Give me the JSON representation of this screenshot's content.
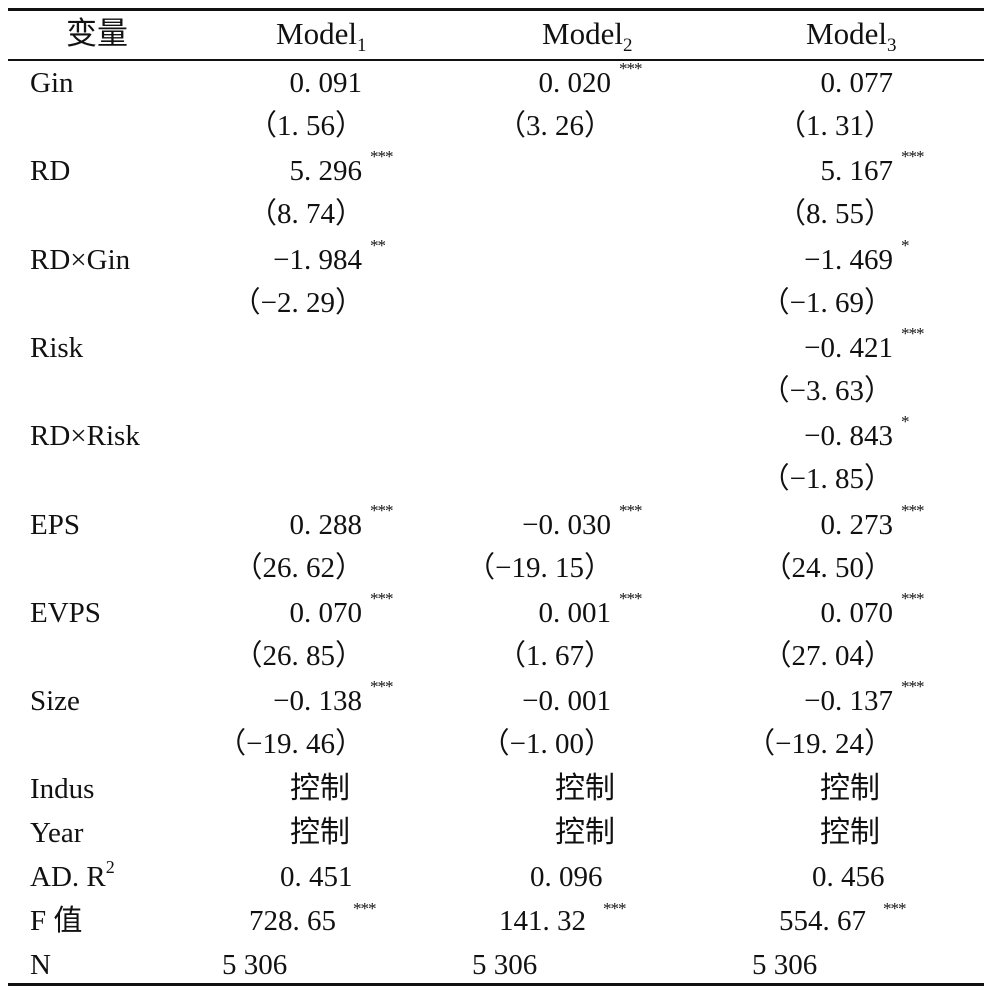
{
  "header": {
    "variable": "变量",
    "models": [
      {
        "name": "Model",
        "sub": "1"
      },
      {
        "name": "Model",
        "sub": "2"
      },
      {
        "name": "Model",
        "sub": "3"
      }
    ]
  },
  "rows": [
    {
      "label": "Gin",
      "cells": [
        {
          "coef": "0. 091",
          "stars": "",
          "t": "（1. 56）"
        },
        {
          "coef": "0. 020",
          "stars": "***",
          "t": "（3. 26）"
        },
        {
          "coef": "0. 077",
          "stars": "",
          "t": "（1. 31）"
        }
      ]
    },
    {
      "label": "RD",
      "cells": [
        {
          "coef": "5. 296",
          "stars": "***",
          "t": "（8. 74）"
        },
        {
          "coef": "",
          "stars": "",
          "t": ""
        },
        {
          "coef": "5. 167",
          "stars": "***",
          "t": "（8. 55）"
        }
      ]
    },
    {
      "label": "RD×Gin",
      "cells": [
        {
          "coef": "−1. 984",
          "stars": "**",
          "t": "（−2. 29）"
        },
        {
          "coef": "",
          "stars": "",
          "t": ""
        },
        {
          "coef": "−1. 469",
          "stars": "*",
          "t": "（−1. 69）"
        }
      ]
    },
    {
      "label": "Risk",
      "cells": [
        {
          "coef": "",
          "stars": "",
          "t": ""
        },
        {
          "coef": "",
          "stars": "",
          "t": ""
        },
        {
          "coef": "−0. 421",
          "stars": "***",
          "t": "（−3. 63）"
        }
      ]
    },
    {
      "label": "RD×Risk",
      "cells": [
        {
          "coef": "",
          "stars": "",
          "t": ""
        },
        {
          "coef": "",
          "stars": "",
          "t": ""
        },
        {
          "coef": "−0. 843",
          "stars": "*",
          "t": "（−1. 85）"
        }
      ]
    },
    {
      "label": "EPS",
      "cells": [
        {
          "coef": "0. 288",
          "stars": "***",
          "t": "（26. 62）"
        },
        {
          "coef": "−0. 030",
          "stars": "***",
          "t": "（−19. 15）"
        },
        {
          "coef": "0. 273",
          "stars": "***",
          "t": "（24. 50）"
        }
      ]
    },
    {
      "label": "EVPS",
      "cells": [
        {
          "coef": "0. 070",
          "stars": "***",
          "t": "（26. 85）"
        },
        {
          "coef": "0. 001",
          "stars": "***",
          "t": "（1. 67）"
        },
        {
          "coef": "0. 070",
          "stars": "***",
          "t": "（27. 04）"
        }
      ]
    },
    {
      "label": "Size",
      "cells": [
        {
          "coef": "−0. 138",
          "stars": "***",
          "t": "（−19. 46）"
        },
        {
          "coef": "−0. 001",
          "stars": "",
          "t": "（−1. 00）"
        },
        {
          "coef": "−0. 137",
          "stars": "***",
          "t": "（−19. 24）"
        }
      ]
    }
  ],
  "controls": [
    {
      "label": "Indus",
      "values": [
        "控制",
        "控制",
        "控制"
      ]
    },
    {
      "label": "Year",
      "values": [
        "控制",
        "控制",
        "控制"
      ]
    }
  ],
  "adr2": {
    "label": "AD. R",
    "sup": "2",
    "values": [
      "0. 451",
      "0. 096",
      "0. 456"
    ]
  },
  "fval": {
    "label": "F 值",
    "cells": [
      {
        "value": "728. 65",
        "stars": "***"
      },
      {
        "value": "141. 32",
        "stars": "***"
      },
      {
        "value": "554. 67",
        "stars": "***"
      }
    ]
  },
  "n": {
    "label": "N",
    "values": [
      "5 306",
      "5 306",
      "5 306"
    ]
  }
}
